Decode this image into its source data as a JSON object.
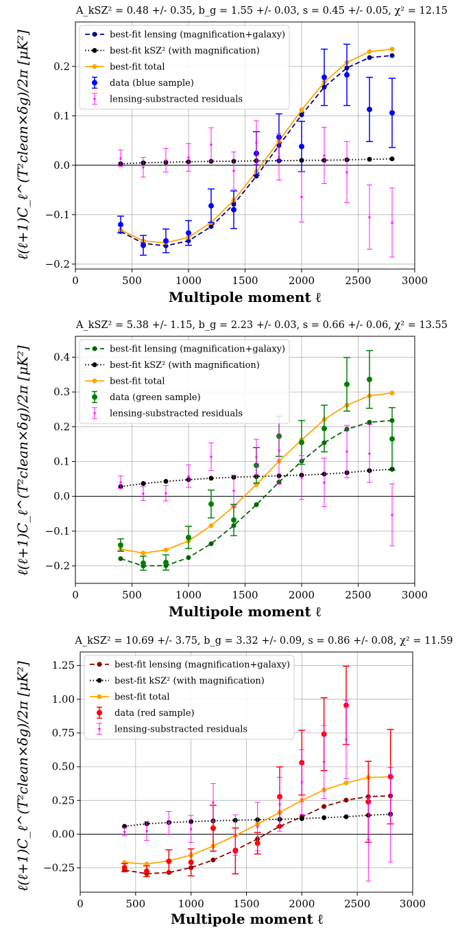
{
  "chart_data": [
    {
      "type": "line",
      "title": "A_kSZ² = 0.48 +/- 0.35, b_g = 1.55 +/- 0.03, s = 0.45 +/- 0.05, χ² = 12.15",
      "xlabel": "Multipole moment ℓ",
      "ylabel": "ℓ(ℓ+1)C_ℓ^(T²clean×δg)/2π [μK²]",
      "xlim": [
        0,
        3000
      ],
      "ylim": [
        -0.21,
        0.29
      ],
      "xticks": [
        0,
        500,
        1000,
        1500,
        2000,
        2500,
        3000
      ],
      "xtick_labels": [
        "0",
        "500",
        "1000",
        "1500",
        "2000",
        "2500",
        "3000"
      ],
      "yticks": [
        -0.2,
        -0.1,
        0.0,
        0.1,
        0.2
      ],
      "ytick_labels": [
        "−0.2",
        "−0.1",
        "0.0",
        "0.1",
        "0.2"
      ],
      "grid": true,
      "legend_position": "top-left",
      "x": [
        400,
        600,
        800,
        1000,
        1200,
        1400,
        1600,
        1800,
        2000,
        2200,
        2400,
        2600,
        2800
      ],
      "series": [
        {
          "name": "best-fit lensing (magnification+galaxy)",
          "style": "dashed-marker",
          "color": "#00008b",
          "values": [
            -0.134,
            -0.158,
            -0.163,
            -0.153,
            -0.124,
            -0.079,
            -0.022,
            0.04,
            0.102,
            0.158,
            0.197,
            0.218,
            0.222
          ]
        },
        {
          "name": "best-fit kSZ² (with magnification)",
          "style": "dotted-marker",
          "color": "#000000",
          "values": [
            0.003,
            0.005,
            0.006,
            0.007,
            0.008,
            0.008,
            0.009,
            0.009,
            0.01,
            0.01,
            0.011,
            0.012,
            0.013
          ]
        },
        {
          "name": "best-fit total",
          "style": "solid-marker",
          "color": "#ffa500",
          "values": [
            -0.131,
            -0.153,
            -0.157,
            -0.146,
            -0.116,
            -0.071,
            -0.013,
            0.049,
            0.112,
            0.168,
            0.208,
            0.23,
            0.235
          ]
        },
        {
          "name": "data (blue sample)",
          "style": "errorbar",
          "color": "#0000ff",
          "values": [
            -0.12,
            -0.162,
            -0.153,
            -0.137,
            -0.082,
            -0.09,
            0.024,
            0.057,
            0.038,
            0.178,
            0.183,
            0.113,
            0.106
          ],
          "errors": [
            0.017,
            0.02,
            0.024,
            0.025,
            0.034,
            0.038,
            0.044,
            0.047,
            0.051,
            0.057,
            0.062,
            0.065,
            0.07
          ]
        },
        {
          "name": "lensing-substracted residuals",
          "style": "errorbar-star",
          "color": "#ff00ff",
          "values": [
            0.014,
            -0.004,
            0.01,
            0.016,
            0.042,
            -0.011,
            0.046,
            0.017,
            -0.064,
            0.02,
            -0.014,
            -0.105,
            -0.116
          ],
          "errors": [
            0.017,
            0.02,
            0.024,
            0.028,
            0.034,
            0.038,
            0.044,
            0.047,
            0.051,
            0.057,
            0.062,
            0.065,
            0.07
          ]
        }
      ]
    },
    {
      "type": "line",
      "title": "A_kSZ² = 5.38 +/- 1.15, b_g = 2.23 +/- 0.03, s = 0.66 +/- 0.06, χ² = 13.55",
      "xlabel": "Multipole moment ℓ",
      "ylabel": "ℓ(ℓ+1)C_ℓ^(T²clean×δg)/2π [μK²]",
      "xlim": [
        0,
        3000
      ],
      "ylim": [
        -0.25,
        0.46
      ],
      "xticks": [
        0,
        500,
        1000,
        1500,
        2000,
        2500,
        3000
      ],
      "xtick_labels": [
        "0",
        "500",
        "1000",
        "1500",
        "2000",
        "2500",
        "3000"
      ],
      "yticks": [
        -0.2,
        -0.1,
        0.0,
        0.1,
        0.2,
        0.3,
        0.4
      ],
      "ytick_labels": [
        "−0.2",
        "−0.1",
        "0.0",
        "0.1",
        "0.2",
        "0.3",
        "0.4"
      ],
      "grid": true,
      "legend_position": "top-left",
      "x": [
        400,
        600,
        800,
        1000,
        1200,
        1400,
        1600,
        1800,
        2000,
        2200,
        2400,
        2600,
        2800
      ],
      "series": [
        {
          "name": "best-fit lensing (magnification+galaxy)",
          "style": "dashed-marker",
          "color": "#006400",
          "values": [
            -0.179,
            -0.2,
            -0.199,
            -0.176,
            -0.136,
            -0.084,
            -0.024,
            0.041,
            0.101,
            0.154,
            0.193,
            0.213,
            0.218
          ]
        },
        {
          "name": "best-fit kSZ² (with magnification)",
          "style": "dotted-marker",
          "color": "#000000",
          "values": [
            0.028,
            0.037,
            0.043,
            0.048,
            0.052,
            0.055,
            0.057,
            0.059,
            0.061,
            0.064,
            0.068,
            0.074,
            0.078
          ]
        },
        {
          "name": "best-fit total",
          "style": "solid-marker",
          "color": "#ffa500",
          "values": [
            -0.152,
            -0.163,
            -0.154,
            -0.128,
            -0.084,
            -0.029,
            0.034,
            0.101,
            0.162,
            0.221,
            0.262,
            0.289,
            0.297
          ]
        },
        {
          "name": "data (green sample)",
          "style": "errorbar",
          "color": "#008000",
          "values": [
            -0.14,
            -0.192,
            -0.19,
            -0.118,
            -0.022,
            -0.068,
            0.089,
            0.173,
            0.155,
            0.195,
            0.322,
            0.336,
            0.165
          ],
          "errors": [
            0.018,
            0.02,
            0.022,
            0.032,
            0.04,
            0.045,
            0.051,
            0.058,
            0.063,
            0.067,
            0.077,
            0.083,
            0.09
          ]
        },
        {
          "name": "lensing-substracted residuals",
          "style": "errorbar-star",
          "color": "#ff00ff",
          "values": [
            0.041,
            0.008,
            0.009,
            0.058,
            0.114,
            0.016,
            0.113,
            0.132,
            0.054,
            0.04,
            0.129,
            0.123,
            -0.053
          ],
          "errors": [
            0.018,
            0.02,
            0.022,
            0.032,
            0.04,
            0.045,
            0.051,
            0.097,
            0.063,
            0.07,
            0.075,
            0.083,
            0.089
          ]
        }
      ]
    },
    {
      "type": "line",
      "title": "A_kSZ² = 10.69 +/- 3.75, b_g = 3.32 +/- 0.09, s = 0.86 +/- 0.08, χ² = 11.59",
      "xlabel": "Multipole moment ℓ",
      "ylabel": "ℓ(ℓ+1)C_ℓ^(T²clean×δg)/2π [μK²]",
      "xlim": [
        0,
        3000
      ],
      "ylim": [
        -0.43,
        1.35
      ],
      "xticks": [
        0,
        500,
        1000,
        1500,
        2000,
        2500,
        3000
      ],
      "xtick_labels": [
        "0",
        "500",
        "1000",
        "1500",
        "2000",
        "2500",
        "3000"
      ],
      "yticks": [
        -0.25,
        0.0,
        0.25,
        0.5,
        0.75,
        1.0,
        1.25
      ],
      "ytick_labels": [
        "−0.25",
        "0.00",
        "0.25",
        "0.50",
        "0.75",
        "1.00",
        "1.25"
      ],
      "grid": true,
      "legend_position": "top-left",
      "x": [
        400,
        600,
        800,
        1000,
        1200,
        1400,
        1600,
        1800,
        2000,
        2200,
        2400,
        2600,
        2800
      ],
      "series": [
        {
          "name": "best-fit lensing (magnification+galaxy)",
          "style": "dashed-marker",
          "color": "#8b0000",
          "values": [
            -0.266,
            -0.293,
            -0.284,
            -0.248,
            -0.191,
            -0.118,
            -0.035,
            0.058,
            0.128,
            0.205,
            0.252,
            0.278,
            0.284
          ]
        },
        {
          "name": "best-fit kSZ² (with magnification)",
          "style": "dotted-marker",
          "color": "#000000",
          "values": [
            0.058,
            0.077,
            0.086,
            0.093,
            0.099,
            0.103,
            0.107,
            0.11,
            0.115,
            0.122,
            0.129,
            0.14,
            0.148
          ]
        },
        {
          "name": "best-fit total",
          "style": "solid-marker",
          "color": "#ffa500",
          "values": [
            -0.21,
            -0.221,
            -0.198,
            -0.155,
            -0.088,
            -0.01,
            0.074,
            0.161,
            0.25,
            0.328,
            0.38,
            0.42,
            0.425
          ]
        },
        {
          "name": "data (red sample)",
          "style": "errorbar",
          "color": "#ff0000",
          "values": [
            -0.248,
            -0.275,
            -0.201,
            -0.209,
            0.044,
            -0.124,
            -0.067,
            0.278,
            0.53,
            0.741,
            0.955,
            0.24,
            0.426
          ],
          "errors": [
            0.03,
            0.04,
            0.085,
            0.1,
            0.17,
            0.17,
            0.08,
            0.22,
            0.24,
            0.27,
            0.29,
            0.3,
            0.35
          ]
        },
        {
          "name": "lensing-substracted residuals",
          "style": "errorbar-star",
          "color": "#ff00ff",
          "values": [
            0.018,
            0.024,
            0.083,
            0.039,
            0.235,
            -0.006,
            0.056,
            0.222,
            0.386,
            0.535,
            0.703,
            -0.038,
            0.143
          ],
          "errors": [
            0.03,
            0.07,
            0.085,
            0.1,
            0.14,
            0.15,
            0.18,
            0.2,
            0.24,
            0.27,
            0.29,
            0.31,
            0.35
          ]
        }
      ]
    }
  ]
}
